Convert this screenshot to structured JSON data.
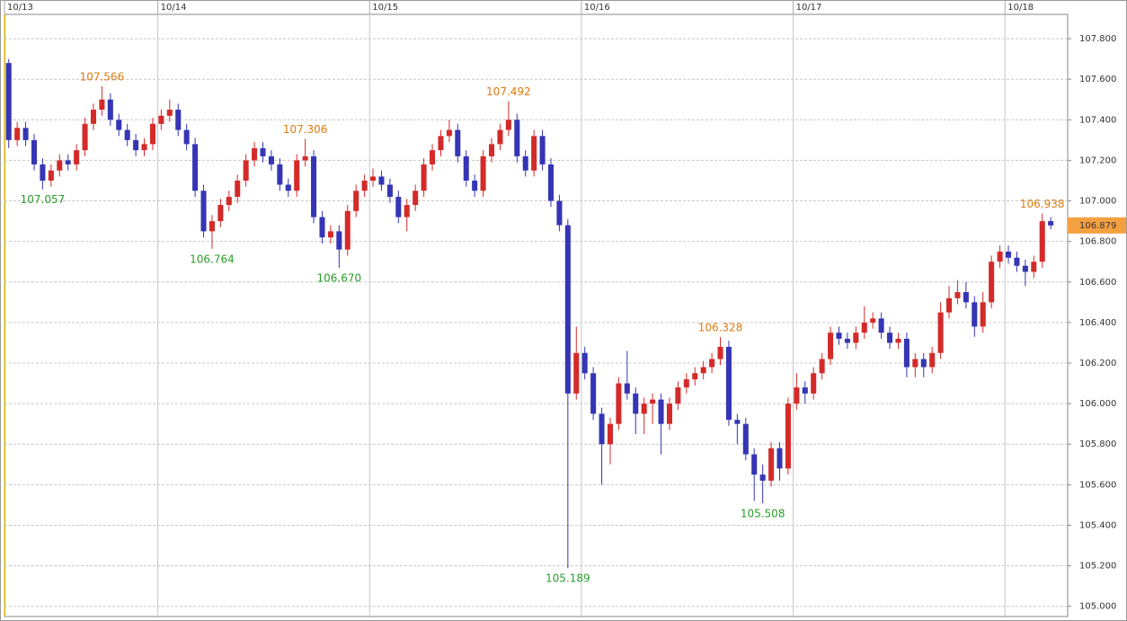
{
  "chart_data": {
    "type": "candlestick",
    "up_color": "#d42a2a",
    "down_color": "#3535b5",
    "high_color": "#e07a10",
    "low_color": "#2a9d2a",
    "grid": true,
    "xlim": [
      -0.5,
      125
    ],
    "ylim": [
      104.95,
      107.92
    ],
    "xticks": [
      {
        "value": -0.5,
        "label": "10/13"
      },
      {
        "value": 17.6,
        "label": "10/14"
      },
      {
        "value": 42.6,
        "label": "10/15"
      },
      {
        "value": 67.6,
        "label": "10/16"
      },
      {
        "value": 92.6,
        "label": "10/17"
      },
      {
        "value": 117.6,
        "label": "10/18"
      }
    ],
    "yticks": [
      {
        "value": 105.0,
        "label": "105.000"
      },
      {
        "value": 105.2,
        "label": "105.200"
      },
      {
        "value": 105.4,
        "label": "105.400"
      },
      {
        "value": 105.6,
        "label": "105.600"
      },
      {
        "value": 105.8,
        "label": "105.800"
      },
      {
        "value": 106.0,
        "label": "106.000"
      },
      {
        "value": 106.2,
        "label": "106.200"
      },
      {
        "value": 106.4,
        "label": "106.400"
      },
      {
        "value": 106.6,
        "label": "106.600"
      },
      {
        "value": 106.8,
        "label": "106.800"
      },
      {
        "value": 107.0,
        "label": "107.000"
      },
      {
        "value": 107.2,
        "label": "107.200"
      },
      {
        "value": 107.4,
        "label": "107.400"
      },
      {
        "value": 107.6,
        "label": "107.600"
      },
      {
        "value": 107.8,
        "label": "107.800"
      }
    ],
    "last_price": {
      "value": 106.879,
      "label": "106.879"
    },
    "annotations": [
      {
        "label": "107.566",
        "value": 107.566,
        "kind": "high"
      },
      {
        "label": "107.057",
        "value": 107.057,
        "kind": "low"
      },
      {
        "label": "106.764",
        "value": 106.764,
        "kind": "low"
      },
      {
        "label": "107.306",
        "value": 107.306,
        "kind": "high"
      },
      {
        "label": "106.670",
        "value": 106.67,
        "kind": "low"
      },
      {
        "label": "107.492",
        "value": 107.492,
        "kind": "high"
      },
      {
        "label": "105.189",
        "value": 105.189,
        "kind": "low"
      },
      {
        "label": "106.328",
        "value": 106.328,
        "kind": "high"
      },
      {
        "label": "105.508",
        "value": 105.508,
        "kind": "low"
      },
      {
        "label": "106.938",
        "value": 106.938,
        "kind": "high"
      }
    ],
    "candles": [
      [
        107.68,
        107.7,
        107.26,
        107.3
      ],
      [
        107.3,
        107.39,
        107.27,
        107.36
      ],
      [
        107.36,
        107.39,
        107.27,
        107.3
      ],
      [
        107.3,
        107.33,
        107.15,
        107.18
      ],
      [
        107.18,
        107.21,
        107.057,
        107.1
      ],
      [
        107.1,
        107.18,
        107.07,
        107.15
      ],
      [
        107.15,
        107.23,
        107.12,
        107.2
      ],
      [
        107.2,
        107.23,
        107.15,
        107.18
      ],
      [
        107.18,
        107.28,
        107.15,
        107.25
      ],
      [
        107.25,
        107.41,
        107.22,
        107.38
      ],
      [
        107.38,
        107.48,
        107.35,
        107.45
      ],
      [
        107.45,
        107.566,
        107.42,
        107.5
      ],
      [
        107.5,
        107.53,
        107.37,
        107.4
      ],
      [
        107.4,
        107.43,
        107.32,
        107.35
      ],
      [
        107.35,
        107.38,
        107.27,
        107.3
      ],
      [
        107.3,
        107.33,
        107.22,
        107.25
      ],
      [
        107.25,
        107.31,
        107.22,
        107.28
      ],
      [
        107.28,
        107.41,
        107.25,
        107.38
      ],
      [
        107.38,
        107.45,
        107.35,
        107.42
      ],
      [
        107.42,
        107.5,
        107.39,
        107.45
      ],
      [
        107.45,
        107.48,
        107.32,
        107.35
      ],
      [
        107.35,
        107.38,
        107.25,
        107.28
      ],
      [
        107.28,
        107.31,
        107.02,
        107.05
      ],
      [
        107.05,
        107.08,
        106.82,
        106.85
      ],
      [
        106.85,
        106.93,
        106.764,
        106.9
      ],
      [
        106.9,
        107.01,
        106.87,
        106.98
      ],
      [
        106.98,
        107.05,
        106.95,
        107.02
      ],
      [
        107.02,
        107.13,
        106.99,
        107.1
      ],
      [
        107.1,
        107.23,
        107.07,
        107.2
      ],
      [
        107.2,
        107.29,
        107.17,
        107.26
      ],
      [
        107.26,
        107.29,
        107.19,
        107.22
      ],
      [
        107.22,
        107.25,
        107.15,
        107.18
      ],
      [
        107.18,
        107.21,
        107.05,
        107.08
      ],
      [
        107.08,
        107.11,
        107.02,
        107.05
      ],
      [
        107.05,
        107.23,
        107.02,
        107.2
      ],
      [
        107.2,
        107.306,
        107.17,
        107.22
      ],
      [
        107.22,
        107.25,
        106.89,
        106.92
      ],
      [
        106.92,
        106.95,
        106.79,
        106.82
      ],
      [
        106.82,
        106.88,
        106.79,
        106.85
      ],
      [
        106.85,
        106.88,
        106.67,
        106.76
      ],
      [
        106.76,
        106.98,
        106.73,
        106.95
      ],
      [
        106.95,
        107.08,
        106.92,
        107.05
      ],
      [
        107.05,
        107.13,
        107.02,
        107.1
      ],
      [
        107.1,
        107.16,
        107.07,
        107.12
      ],
      [
        107.12,
        107.15,
        107.05,
        107.08
      ],
      [
        107.08,
        107.11,
        106.99,
        107.02
      ],
      [
        107.02,
        107.05,
        106.89,
        106.92
      ],
      [
        106.92,
        107.01,
        106.85,
        106.98
      ],
      [
        106.98,
        107.08,
        106.95,
        107.05
      ],
      [
        107.05,
        107.21,
        107.02,
        107.18
      ],
      [
        107.18,
        107.28,
        107.15,
        107.25
      ],
      [
        107.25,
        107.35,
        107.22,
        107.32
      ],
      [
        107.32,
        107.4,
        107.29,
        107.35
      ],
      [
        107.35,
        107.38,
        107.19,
        107.22
      ],
      [
        107.22,
        107.25,
        107.07,
        107.1
      ],
      [
        107.1,
        107.13,
        107.02,
        107.05
      ],
      [
        107.05,
        107.25,
        107.02,
        107.22
      ],
      [
        107.22,
        107.31,
        107.19,
        107.28
      ],
      [
        107.28,
        107.38,
        107.25,
        107.35
      ],
      [
        107.35,
        107.492,
        107.32,
        107.4
      ],
      [
        107.4,
        107.43,
        107.19,
        107.22
      ],
      [
        107.22,
        107.25,
        107.12,
        107.15
      ],
      [
        107.15,
        107.35,
        107.12,
        107.32
      ],
      [
        107.32,
        107.35,
        107.15,
        107.18
      ],
      [
        107.18,
        107.21,
        106.97,
        107.0
      ],
      [
        107.0,
        107.03,
        106.85,
        106.88
      ],
      [
        106.88,
        106.91,
        105.189,
        106.05
      ],
      [
        106.05,
        106.38,
        106.02,
        106.25
      ],
      [
        106.25,
        106.28,
        106.12,
        106.15
      ],
      [
        106.15,
        106.18,
        105.92,
        105.95
      ],
      [
        105.95,
        105.98,
        105.6,
        105.8
      ],
      [
        105.8,
        105.93,
        105.7,
        105.9
      ],
      [
        105.9,
        106.13,
        105.87,
        106.1
      ],
      [
        106.1,
        106.26,
        106.02,
        106.05
      ],
      [
        106.05,
        106.08,
        105.85,
        105.95
      ],
      [
        105.95,
        106.03,
        105.85,
        106.0
      ],
      [
        106.0,
        106.05,
        105.9,
        106.02
      ],
      [
        106.02,
        106.05,
        105.75,
        105.9
      ],
      [
        105.9,
        106.03,
        105.87,
        106.0
      ],
      [
        106.0,
        106.11,
        105.97,
        106.08
      ],
      [
        106.08,
        106.15,
        106.05,
        106.12
      ],
      [
        106.12,
        106.18,
        106.09,
        106.15
      ],
      [
        106.15,
        106.21,
        106.12,
        106.18
      ],
      [
        106.18,
        106.25,
        106.15,
        106.22
      ],
      [
        106.22,
        106.328,
        106.19,
        106.28
      ],
      [
        106.28,
        106.31,
        105.89,
        105.92
      ],
      [
        105.92,
        105.95,
        105.8,
        105.9
      ],
      [
        105.9,
        105.93,
        105.72,
        105.75
      ],
      [
        105.75,
        105.78,
        105.52,
        105.65
      ],
      [
        105.65,
        105.7,
        105.508,
        105.62
      ],
      [
        105.62,
        105.81,
        105.59,
        105.78
      ],
      [
        105.78,
        105.81,
        105.62,
        105.68
      ],
      [
        105.68,
        106.03,
        105.65,
        106.0
      ],
      [
        106.0,
        106.15,
        105.97,
        106.08
      ],
      [
        106.08,
        106.11,
        106.0,
        106.05
      ],
      [
        106.05,
        106.18,
        106.02,
        106.15
      ],
      [
        106.15,
        106.25,
        106.12,
        106.22
      ],
      [
        106.22,
        106.38,
        106.19,
        106.35
      ],
      [
        106.35,
        106.38,
        106.29,
        106.32
      ],
      [
        106.32,
        106.35,
        106.27,
        106.3
      ],
      [
        106.3,
        106.38,
        106.27,
        106.35
      ],
      [
        106.35,
        106.48,
        106.32,
        106.4
      ],
      [
        106.4,
        106.45,
        106.37,
        106.42
      ],
      [
        106.42,
        106.45,
        106.32,
        106.35
      ],
      [
        106.35,
        106.38,
        106.27,
        106.3
      ],
      [
        106.3,
        106.35,
        106.27,
        106.32
      ],
      [
        106.32,
        106.35,
        106.13,
        106.18
      ],
      [
        106.18,
        106.25,
        106.13,
        106.22
      ],
      [
        106.22,
        106.25,
        106.13,
        106.18
      ],
      [
        106.18,
        106.28,
        106.15,
        106.25
      ],
      [
        106.25,
        106.5,
        106.22,
        106.45
      ],
      [
        106.45,
        106.58,
        106.42,
        106.52
      ],
      [
        106.52,
        106.61,
        106.49,
        106.55
      ],
      [
        106.55,
        106.6,
        106.47,
        106.5
      ],
      [
        106.5,
        106.53,
        106.33,
        106.38
      ],
      [
        106.38,
        106.55,
        106.35,
        106.5
      ],
      [
        106.5,
        106.73,
        106.47,
        106.7
      ],
      [
        106.7,
        106.78,
        106.67,
        106.75
      ],
      [
        106.75,
        106.78,
        106.69,
        106.72
      ],
      [
        106.72,
        106.75,
        106.65,
        106.68
      ],
      [
        106.68,
        106.71,
        106.58,
        106.65
      ],
      [
        106.65,
        106.73,
        106.62,
        106.7
      ],
      [
        106.7,
        106.938,
        106.67,
        106.9
      ],
      [
        106.9,
        106.92,
        106.86,
        106.879
      ]
    ]
  }
}
